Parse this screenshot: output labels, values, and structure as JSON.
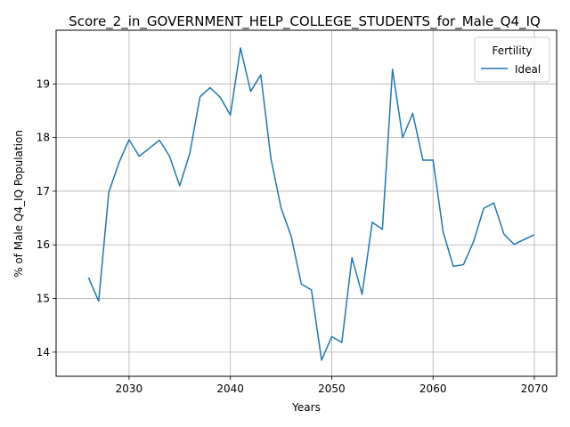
{
  "chart_data": {
    "type": "line",
    "title": "Score_2_in_GOVERNMENT_HELP_COLLEGE_STUDENTS_for_Male_Q4_IQ",
    "xlabel": "Years",
    "ylabel": "% of Male Q4_IQ Population",
    "xlim": [
      2022.8,
      2072.2
    ],
    "ylim": [
      13.55,
      20.0
    ],
    "xticks": [
      2030,
      2040,
      2050,
      2060,
      2070
    ],
    "yticks": [
      14,
      15,
      16,
      17,
      18,
      19
    ],
    "grid": true,
    "legend": {
      "title": "Fertility",
      "placement": "top-right"
    },
    "series": [
      {
        "name": "Ideal",
        "color": "#1f77b4",
        "x": [
          2026,
          2027,
          2028,
          2029,
          2030,
          2031,
          2032,
          2033,
          2034,
          2035,
          2036,
          2037,
          2038,
          2039,
          2040,
          2041,
          2042,
          2043,
          2044,
          2045,
          2046,
          2047,
          2048,
          2049,
          2050,
          2051,
          2052,
          2053,
          2054,
          2055,
          2056,
          2057,
          2058,
          2059,
          2060,
          2061,
          2062,
          2063,
          2064,
          2065,
          2066,
          2067,
          2068,
          2069,
          2070
        ],
        "y": [
          15.39,
          14.95,
          16.98,
          17.53,
          17.96,
          17.65,
          17.8,
          17.95,
          17.65,
          17.1,
          17.71,
          18.76,
          18.93,
          18.75,
          18.42,
          19.67,
          18.86,
          19.17,
          17.61,
          16.69,
          16.16,
          15.27,
          15.16,
          13.85,
          14.29,
          14.18,
          15.76,
          15.08,
          16.42,
          16.29,
          19.27,
          18.0,
          18.45,
          17.58,
          17.58,
          16.24,
          15.6,
          15.63,
          16.06,
          16.68,
          16.78,
          16.2,
          16.01,
          16.1,
          16.19
        ]
      }
    ]
  }
}
